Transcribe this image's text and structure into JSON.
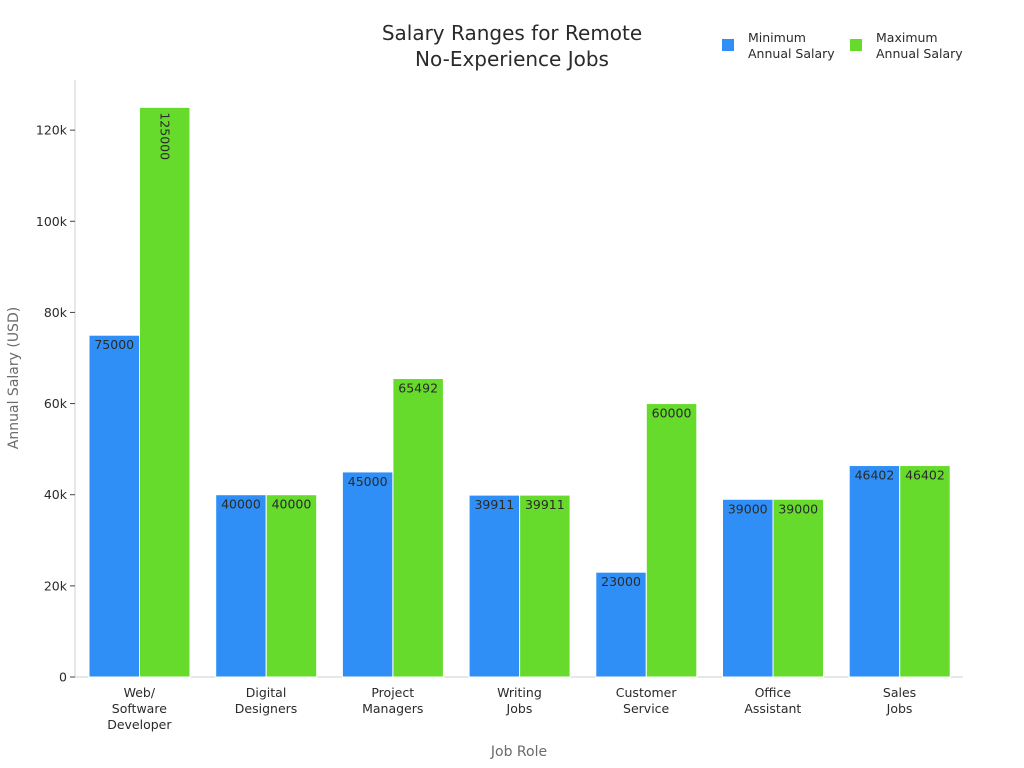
{
  "chart_data": {
    "type": "bar",
    "title_lines": [
      "Salary Ranges for Remote",
      "No-Experience Jobs"
    ],
    "xlabel": "Job Role",
    "ylabel": "Annual Salary (USD)",
    "ylim": [
      0,
      131000
    ],
    "y_ticks": [
      0,
      20000,
      40000,
      60000,
      80000,
      100000,
      120000
    ],
    "y_tick_labels": [
      "0",
      "20k",
      "40k",
      "60k",
      "80k",
      "100k",
      "120k"
    ],
    "grid": false,
    "legend_position": "top-right",
    "categories": [
      [
        "Web/",
        "Software",
        "Developer"
      ],
      [
        "Digital",
        "Designers"
      ],
      [
        "Project",
        "Managers"
      ],
      [
        "Writing",
        "Jobs"
      ],
      [
        "Customer",
        "Service"
      ],
      [
        "Office",
        "Assistant"
      ],
      [
        "Sales",
        "Jobs"
      ]
    ],
    "series": [
      {
        "name_lines": [
          "Minimum",
          "Annual Salary"
        ],
        "color": "#2f8ff7",
        "values": [
          75000,
          40000,
          45000,
          39911,
          23000,
          39000,
          46402
        ]
      },
      {
        "name_lines": [
          "Maximum",
          "Annual Salary"
        ],
        "color": "#66db2b",
        "values": [
          125000,
          40000,
          65492,
          39911,
          60000,
          39000,
          46402
        ]
      }
    ]
  }
}
